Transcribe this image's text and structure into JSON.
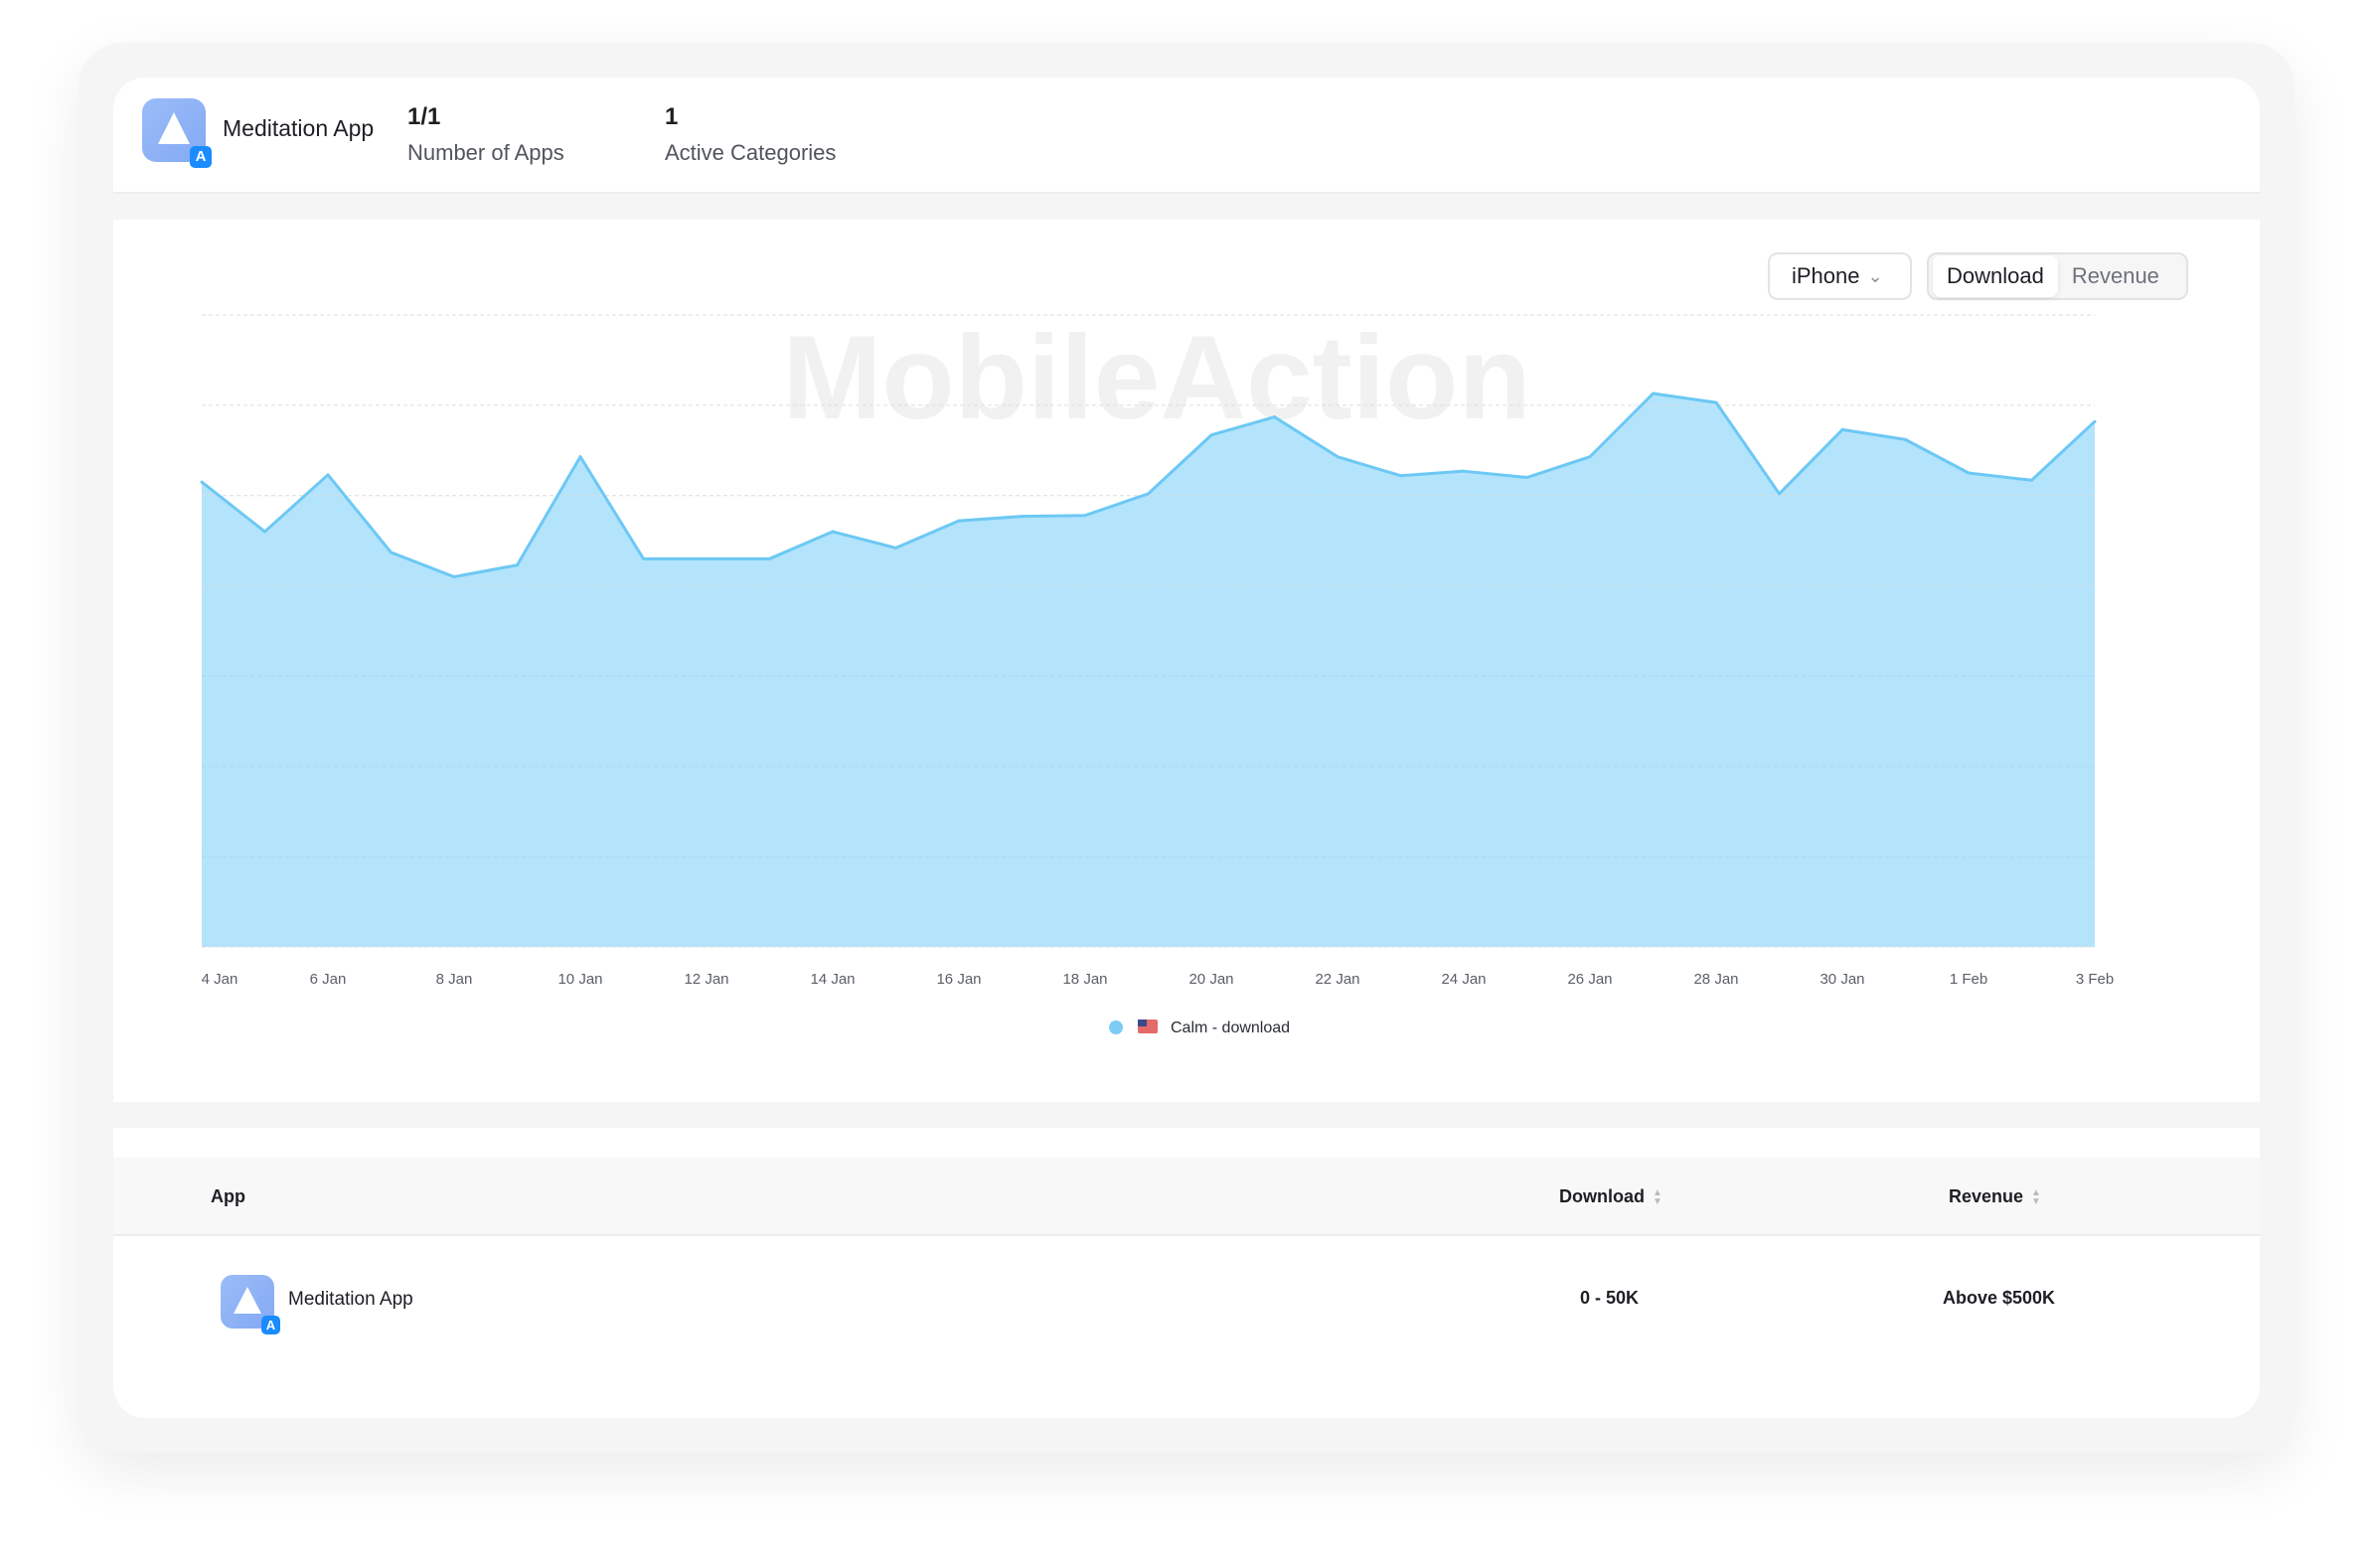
{
  "header": {
    "app_name": "Meditation App",
    "stats": [
      {
        "value": "1/1",
        "label": "Number of Apps"
      },
      {
        "value": "1",
        "label": "Active Categories"
      }
    ]
  },
  "controls": {
    "device": "iPhone",
    "toggle": [
      {
        "label": "Download",
        "active": true
      },
      {
        "label": "Revenue",
        "active": false
      }
    ]
  },
  "watermark": "MobileAction",
  "colors": {
    "area": "#b3e4fc",
    "line": "#6cc8f4",
    "accent": "#1a8cff"
  },
  "chart_data": {
    "type": "area",
    "x": [
      "4 Jan",
      "5 Jan",
      "6 Jan",
      "7 Jan",
      "8 Jan",
      "9 Jan",
      "10 Jan",
      "11 Jan",
      "12 Jan",
      "13 Jan",
      "14 Jan",
      "15 Jan",
      "16 Jan",
      "17 Jan",
      "18 Jan",
      "19 Jan",
      "20 Jan",
      "21 Jan",
      "22 Jan",
      "23 Jan",
      "24 Jan",
      "25 Jan",
      "26 Jan",
      "27 Jan",
      "28 Jan",
      "29 Jan",
      "30 Jan",
      "31 Jan",
      "1 Feb",
      "2 Feb",
      "3 Feb"
    ],
    "tick_labels": [
      "4 Jan",
      "6 Jan",
      "8 Jan",
      "10 Jan",
      "12 Jan",
      "14 Jan",
      "16 Jan",
      "18 Jan",
      "20 Jan",
      "22 Jan",
      "24 Jan",
      "26 Jan",
      "28 Jan",
      "30 Jan",
      "1 Feb",
      "3 Feb"
    ],
    "series": [
      {
        "name": "Calm - download",
        "values": [
          5.15,
          4.6,
          5.23,
          4.37,
          4.1,
          4.23,
          5.43,
          4.3,
          4.3,
          4.3,
          4.6,
          4.42,
          4.72,
          4.77,
          4.78,
          5.02,
          5.67,
          5.87,
          5.43,
          5.22,
          5.27,
          5.2,
          5.43,
          6.13,
          6.03,
          5.02,
          5.73,
          5.62,
          5.25,
          5.17,
          5.82
        ]
      }
    ],
    "ylim": [
      0,
      7
    ],
    "grid": true,
    "legend": "bottom-center",
    "title": "",
    "xlabel": "",
    "ylabel": ""
  },
  "table": {
    "columns": [
      "App",
      "Download",
      "Revenue"
    ],
    "rows": [
      {
        "app": "Meditation App",
        "download": "0 - 50K",
        "revenue": "Above $500K"
      }
    ]
  }
}
